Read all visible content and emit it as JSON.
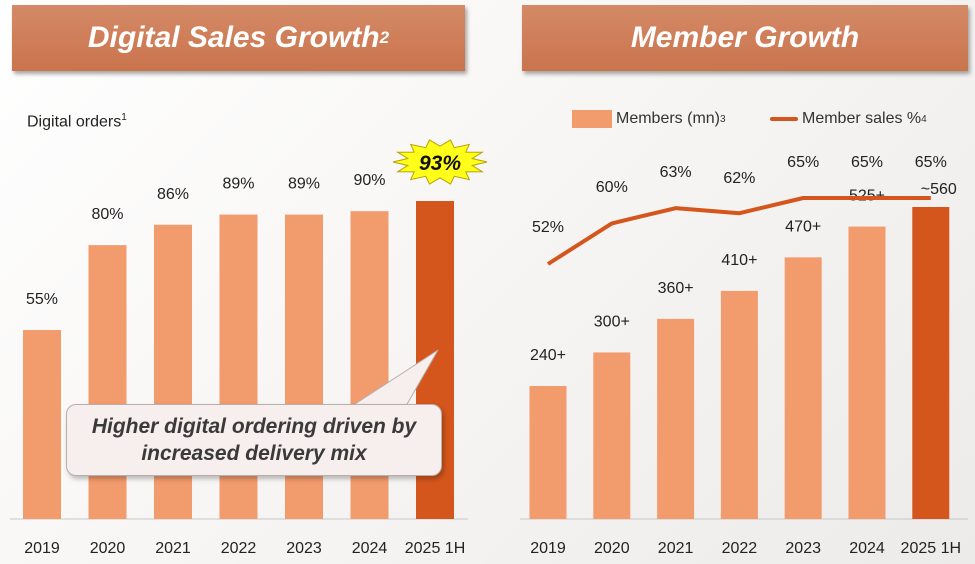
{
  "left_panel": {
    "title": "Digital Sales Growth",
    "title_sup": "2",
    "subtitle": "Digital orders",
    "subtitle_sup": "1",
    "callout": "Higher digital ordering driven by increased delivery mix",
    "burst_label": "93%"
  },
  "right_panel": {
    "title": "Member Growth",
    "legend": {
      "members": "Members (mn)",
      "members_sup": "3",
      "sales": "Member sales %",
      "sales_sup": "4"
    }
  },
  "colors": {
    "bar": "#f29b6d",
    "bar_highlight": "#d4561c",
    "line": "#d4561c",
    "title_bg": "#c9744d",
    "burst": "#ffff1a"
  },
  "chart_data": [
    {
      "type": "bar",
      "title": "Digital Sales Growth",
      "ylabel": "Digital orders",
      "categories": [
        "2019",
        "2020",
        "2021",
        "2022",
        "2023",
        "2024",
        "2025 1H"
      ],
      "values": [
        55,
        80,
        86,
        89,
        89,
        90,
        93
      ],
      "data_labels": [
        "55%",
        "80%",
        "86%",
        "89%",
        "89%",
        "90%",
        "93%"
      ],
      "highlight_index": 6,
      "ylim": [
        0,
        100
      ]
    },
    {
      "type": "bar",
      "title": "Member Growth",
      "categories": [
        "2019",
        "2020",
        "2021",
        "2022",
        "2023",
        "2024",
        "2025 1H"
      ],
      "series": [
        {
          "name": "Members (mn)",
          "type": "bar",
          "values": [
            240,
            300,
            360,
            410,
            470,
            525,
            560
          ],
          "data_labels": [
            "240+",
            "300+",
            "360+",
            "410+",
            "470+",
            "525+",
            "~560"
          ]
        },
        {
          "name": "Member sales %",
          "type": "line",
          "values": [
            52,
            60,
            63,
            62,
            65,
            65,
            65
          ],
          "data_labels": [
            "52%",
            "60%",
            "63%",
            "62%",
            "65%",
            "65%",
            "65%"
          ]
        }
      ],
      "highlight_index": 6
    }
  ]
}
